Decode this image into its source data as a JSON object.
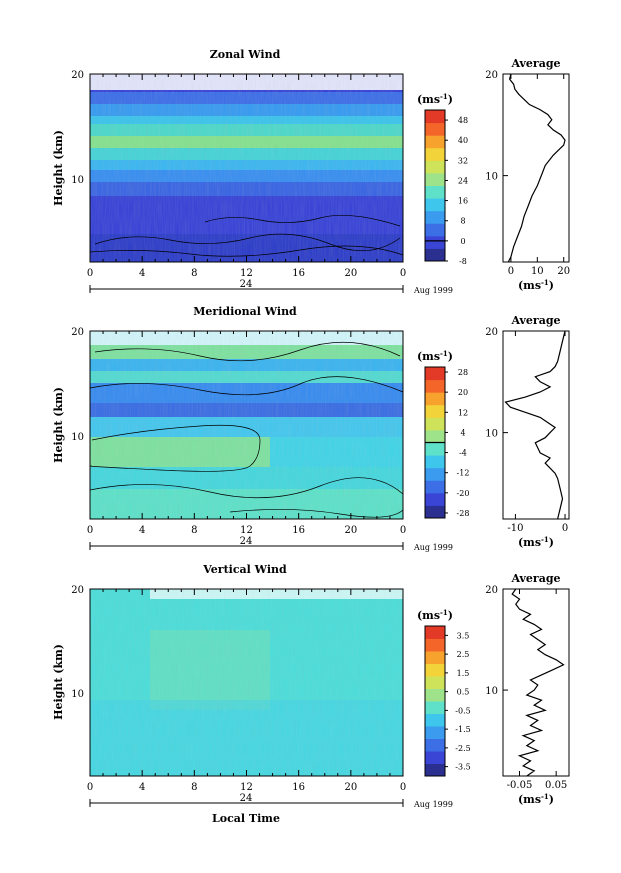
{
  "figure": {
    "xlabel": "Local Time",
    "date_label": "Aug 1999",
    "day_tick": "24"
  },
  "chart_data": [
    {
      "id": "zonal",
      "type": "heatmap",
      "title": "Zonal Wind",
      "ylabel": "Height (km)",
      "xlabel": "",
      "x_ticks": [
        "0",
        "4",
        "8",
        "12",
        "16",
        "20",
        "0"
      ],
      "y_ticks": [
        "20",
        "10"
      ],
      "xlim": [
        0,
        24
      ],
      "ylim": [
        1.5,
        20
      ],
      "colorbar": {
        "unit_label": "(ms",
        "unit_exp": "-1",
        "unit_close": ")",
        "min": -8,
        "max": 52,
        "tick_values": [
          -8,
          0,
          8,
          16,
          24,
          32,
          40,
          48
        ],
        "tick_labels": [
          "-8",
          "0",
          "8",
          "16",
          "24",
          "32",
          "40",
          "48"
        ],
        "zero_line": 0
      },
      "profile": {
        "title": "Average",
        "xlabel": "(ms",
        "xlabel_exp": "-1",
        "xlabel_close": ")",
        "xlim": [
          -3,
          22
        ],
        "x_ticks": [
          0,
          10,
          20
        ],
        "x_tick_labels": [
          "0",
          "10",
          "20"
        ],
        "y_ticks": [
          "20",
          "10"
        ],
        "heights": [
          1.5,
          2,
          3,
          4,
          5,
          6,
          7,
          8,
          9,
          10,
          11,
          12,
          12.5,
          13,
          13.5,
          14,
          14.5,
          15,
          15.5,
          16,
          16.5,
          17,
          17.5,
          18,
          18.5,
          19,
          19.5,
          20
        ],
        "values": [
          -1,
          0,
          1,
          2.5,
          4,
          5,
          6.5,
          8,
          10,
          11.5,
          13,
          16,
          18,
          20,
          20.5,
          19,
          16,
          14,
          15.5,
          14,
          11,
          7,
          5,
          3,
          1.5,
          1,
          -0.5,
          0
        ]
      }
    },
    {
      "id": "meridional",
      "type": "heatmap",
      "title": "Meridional Wind",
      "ylabel": "Height (km)",
      "xlabel": "",
      "x_ticks": [
        "0",
        "4",
        "8",
        "12",
        "16",
        "20",
        "0"
      ],
      "y_ticks": [
        "20",
        "10"
      ],
      "xlim": [
        0,
        24
      ],
      "ylim": [
        1.5,
        20
      ],
      "colorbar": {
        "unit_label": "(ms",
        "unit_exp": "-1",
        "unit_close": ")",
        "min": -30,
        "max": 30,
        "tick_values": [
          -28,
          -20,
          -12,
          -4,
          4,
          12,
          20,
          28
        ],
        "tick_labels": [
          "-28",
          "-20",
          "-12",
          "-4",
          "4",
          "12",
          "20",
          "28"
        ],
        "zero_line": 0
      },
      "profile": {
        "title": "Average",
        "xlabel": "(ms",
        "xlabel_exp": "-1",
        "xlabel_close": ")",
        "xlim": [
          -12.5,
          0.8
        ],
        "x_ticks": [
          -10,
          0
        ],
        "x_tick_labels": [
          "-10",
          "0"
        ],
        "y_ticks": [
          "20",
          "10"
        ],
        "heights": [
          1.5,
          2.5,
          3.5,
          4.5,
          5.5,
          6,
          7,
          7.5,
          8,
          9,
          9.5,
          10,
          10.5,
          11,
          11.5,
          12,
          12.5,
          13,
          13.5,
          14,
          14.5,
          15,
          15.5,
          16,
          16.5,
          17,
          18,
          19,
          20
        ],
        "values": [
          -1.5,
          -1,
          -0.5,
          -1,
          -1.5,
          -2,
          -4,
          -3,
          -5,
          -6,
          -4,
          -3,
          -2,
          -3.5,
          -5,
          -8,
          -11,
          -12,
          -8,
          -5,
          -3,
          -5,
          -6,
          -3,
          -2,
          -1.5,
          -1,
          -0.5,
          0
        ]
      }
    },
    {
      "id": "vertical",
      "type": "heatmap",
      "title": "Vertical Wind",
      "ylabel": "Height (km)",
      "xlabel": "Local Time",
      "x_ticks": [
        "0",
        "4",
        "8",
        "12",
        "16",
        "20",
        "0"
      ],
      "y_ticks": [
        "20",
        "10"
      ],
      "xlim": [
        0,
        24
      ],
      "ylim": [
        1.5,
        20
      ],
      "colorbar": {
        "unit_label": "(ms",
        "unit_exp": "-1",
        "unit_close": ")",
        "min": -4,
        "max": 4,
        "tick_values": [
          -3.5,
          -2.5,
          -1.5,
          -0.5,
          0.5,
          1.5,
          2.5,
          3.5
        ],
        "tick_labels": [
          "-3.5",
          "-2.5",
          "-1.5",
          "-0.5",
          "0.5",
          "1.5",
          "2.5",
          "3.5"
        ],
        "zero_line": null
      },
      "profile": {
        "title": "Average",
        "xlabel": "(ms",
        "xlabel_exp": "-1",
        "xlabel_close": ")",
        "xlim": [
          -0.095,
          0.085
        ],
        "x_ticks": [
          -0.05,
          0.05
        ],
        "x_tick_labels": [
          "-0.05",
          "0.05"
        ],
        "y_ticks": [
          "20",
          "10"
        ],
        "heights": [
          1.5,
          2,
          2.5,
          3,
          3.5,
          4,
          4.5,
          5,
          5.5,
          6,
          6.5,
          7,
          7.5,
          8,
          8.5,
          9,
          9.5,
          10,
          10.5,
          11,
          11.5,
          12,
          12.5,
          13,
          13.5,
          14,
          14.5,
          15,
          15.5,
          16,
          16.5,
          17,
          17.5,
          18,
          18.5,
          19,
          19.5,
          20
        ],
        "values": [
          -0.03,
          -0.01,
          -0.04,
          -0.02,
          -0.05,
          0.0,
          -0.03,
          -0.01,
          -0.04,
          0.01,
          -0.02,
          0.0,
          -0.03,
          0.02,
          -0.01,
          0.01,
          -0.03,
          -0.01,
          0.0,
          -0.02,
          0.01,
          0.04,
          0.07,
          0.05,
          0.02,
          0.0,
          0.02,
          0.0,
          -0.02,
          0.01,
          -0.01,
          -0.04,
          -0.02,
          -0.05,
          -0.06,
          -0.05,
          -0.07,
          -0.06
        ]
      }
    }
  ]
}
